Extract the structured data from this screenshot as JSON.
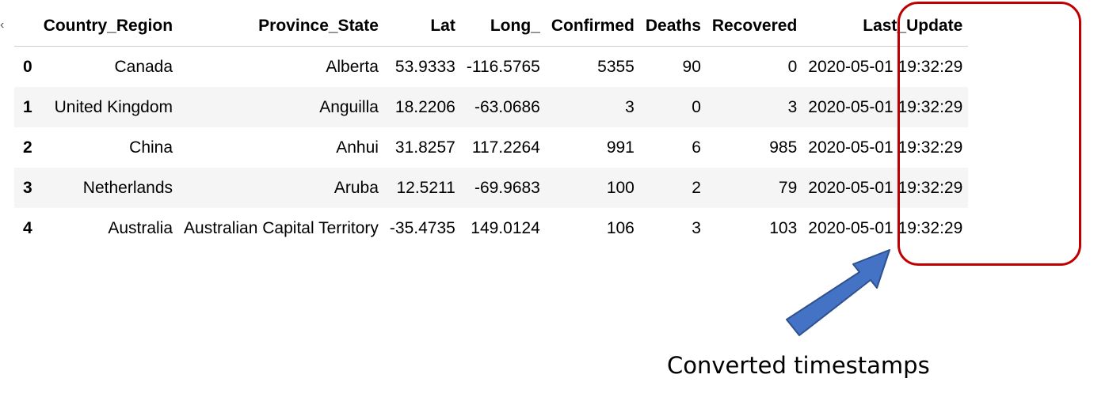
{
  "table": {
    "columns": [
      "",
      "Country_Region",
      "Province_State",
      "Lat",
      "Long_",
      "Confirmed",
      "Deaths",
      "Recovered",
      "Last_Update"
    ],
    "rows": [
      {
        "index": "0",
        "Country_Region": "Canada",
        "Province_State": "Alberta",
        "Lat": "53.9333",
        "Long_": "-116.5765",
        "Confirmed": "5355",
        "Deaths": "90",
        "Recovered": "0",
        "Last_Update": "2020-05-01 19:32:29"
      },
      {
        "index": "1",
        "Country_Region": "United Kingdom",
        "Province_State": "Anguilla",
        "Lat": "18.2206",
        "Long_": "-63.0686",
        "Confirmed": "3",
        "Deaths": "0",
        "Recovered": "3",
        "Last_Update": "2020-05-01 19:32:29"
      },
      {
        "index": "2",
        "Country_Region": "China",
        "Province_State": "Anhui",
        "Lat": "31.8257",
        "Long_": "117.2264",
        "Confirmed": "991",
        "Deaths": "6",
        "Recovered": "985",
        "Last_Update": "2020-05-01 19:32:29"
      },
      {
        "index": "3",
        "Country_Region": "Netherlands",
        "Province_State": "Aruba",
        "Lat": "12.5211",
        "Long_": "-69.9683",
        "Confirmed": "100",
        "Deaths": "2",
        "Recovered": "79",
        "Last_Update": "2020-05-01 19:32:29"
      },
      {
        "index": "4",
        "Country_Region": "Australia",
        "Province_State": "Australian Capital Territory",
        "Lat": "-35.4735",
        "Long_": "149.0124",
        "Confirmed": "106",
        "Deaths": "3",
        "Recovered": "103",
        "Last_Update": "2020-05-01 19:32:29"
      }
    ]
  },
  "annotation": {
    "caption": "Converted timestamps",
    "highlight_color": "#c00000",
    "arrow_color": "#4472c4",
    "arrow_icon": "arrow-up-right-icon"
  },
  "colors": {
    "row_stripe": "#f5f5f5",
    "header_rule": "#cfcfcf"
  }
}
